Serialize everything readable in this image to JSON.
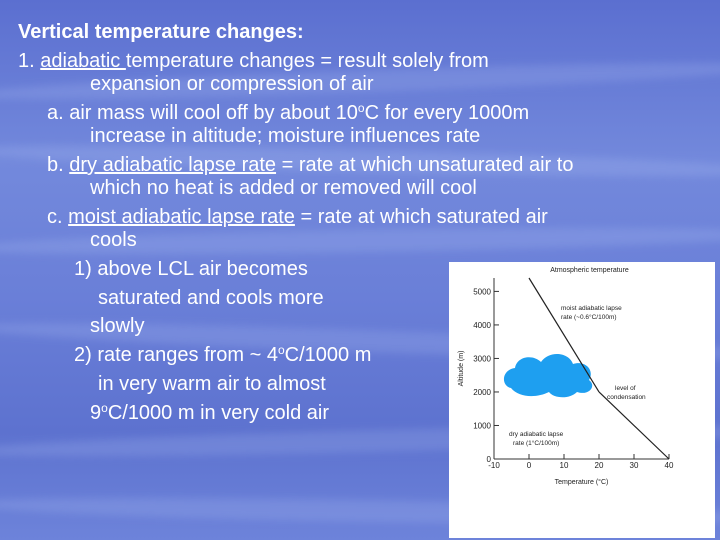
{
  "slide": {
    "title": "Vertical temperature changes:",
    "item1": {
      "number": "1. ",
      "term": "adiabatic ",
      "rest": "temperature changes = result solely from",
      "cont": "expansion or compression of air"
    },
    "item_a": {
      "pre": "a. air mass will cool off by about 10",
      "sup": "o",
      "post": "C for every 1000m",
      "cont": "increase in altitude; moisture influences rate"
    },
    "item_b": {
      "pre": "b. ",
      "term": "dry adiabatic lapse rate",
      "post": " = rate at which unsaturated air to",
      "cont": "which no heat is added or removed will cool"
    },
    "item_c": {
      "pre": "c. ",
      "term": "moist adiabatic lapse rate",
      "post": " = rate at which saturated air",
      "cont": "cools"
    },
    "sub1": {
      "line1": "1) above LCL air becomes",
      "line2": "saturated and cools more",
      "line3": "slowly"
    },
    "sub2": {
      "pre": "2) rate ranges from ~ 4",
      "sup": "o",
      "post": "C/1000 m",
      "line2": "in very warm air to almost",
      "line3_num": "9",
      "line3_sup": "o",
      "line3_post": "C/1000 m in very cold air"
    }
  },
  "figure": {
    "chart_data": {
      "type": "line",
      "title": "Atmospheric temperature",
      "xlabel": "Temperature (°C)",
      "ylabel": "Altitude (m)",
      "x_ticks": [
        "-10",
        "0",
        "10",
        "20",
        "30",
        "40"
      ],
      "y_ticks": [
        "0",
        "1000",
        "2000",
        "3000",
        "4000",
        "5000"
      ],
      "xlim": [
        -10,
        40
      ],
      "ylim": [
        0,
        5400
      ],
      "series": [
        {
          "name": "dry adiabatic lapse rate (1°C/100m)",
          "points": [
            [
              40,
              0
            ],
            [
              20,
              2000
            ]
          ]
        },
        {
          "name": "moist adiabatic lapse rate (~0.6°C/100m)",
          "points": [
            [
              20,
              2000
            ],
            [
              0,
              5400
            ]
          ]
        }
      ],
      "annotations": {
        "moist_line1": "moist adiabatic lapse",
        "moist_line2": "rate (~0.6°C/100m)",
        "lcl_line1": "level of",
        "lcl_line2": "condensation",
        "dry_line1": "dry adiabatic lapse",
        "dry_line2": "rate (1°C/100m)"
      },
      "cloud_color": "#1e9ff0"
    }
  }
}
